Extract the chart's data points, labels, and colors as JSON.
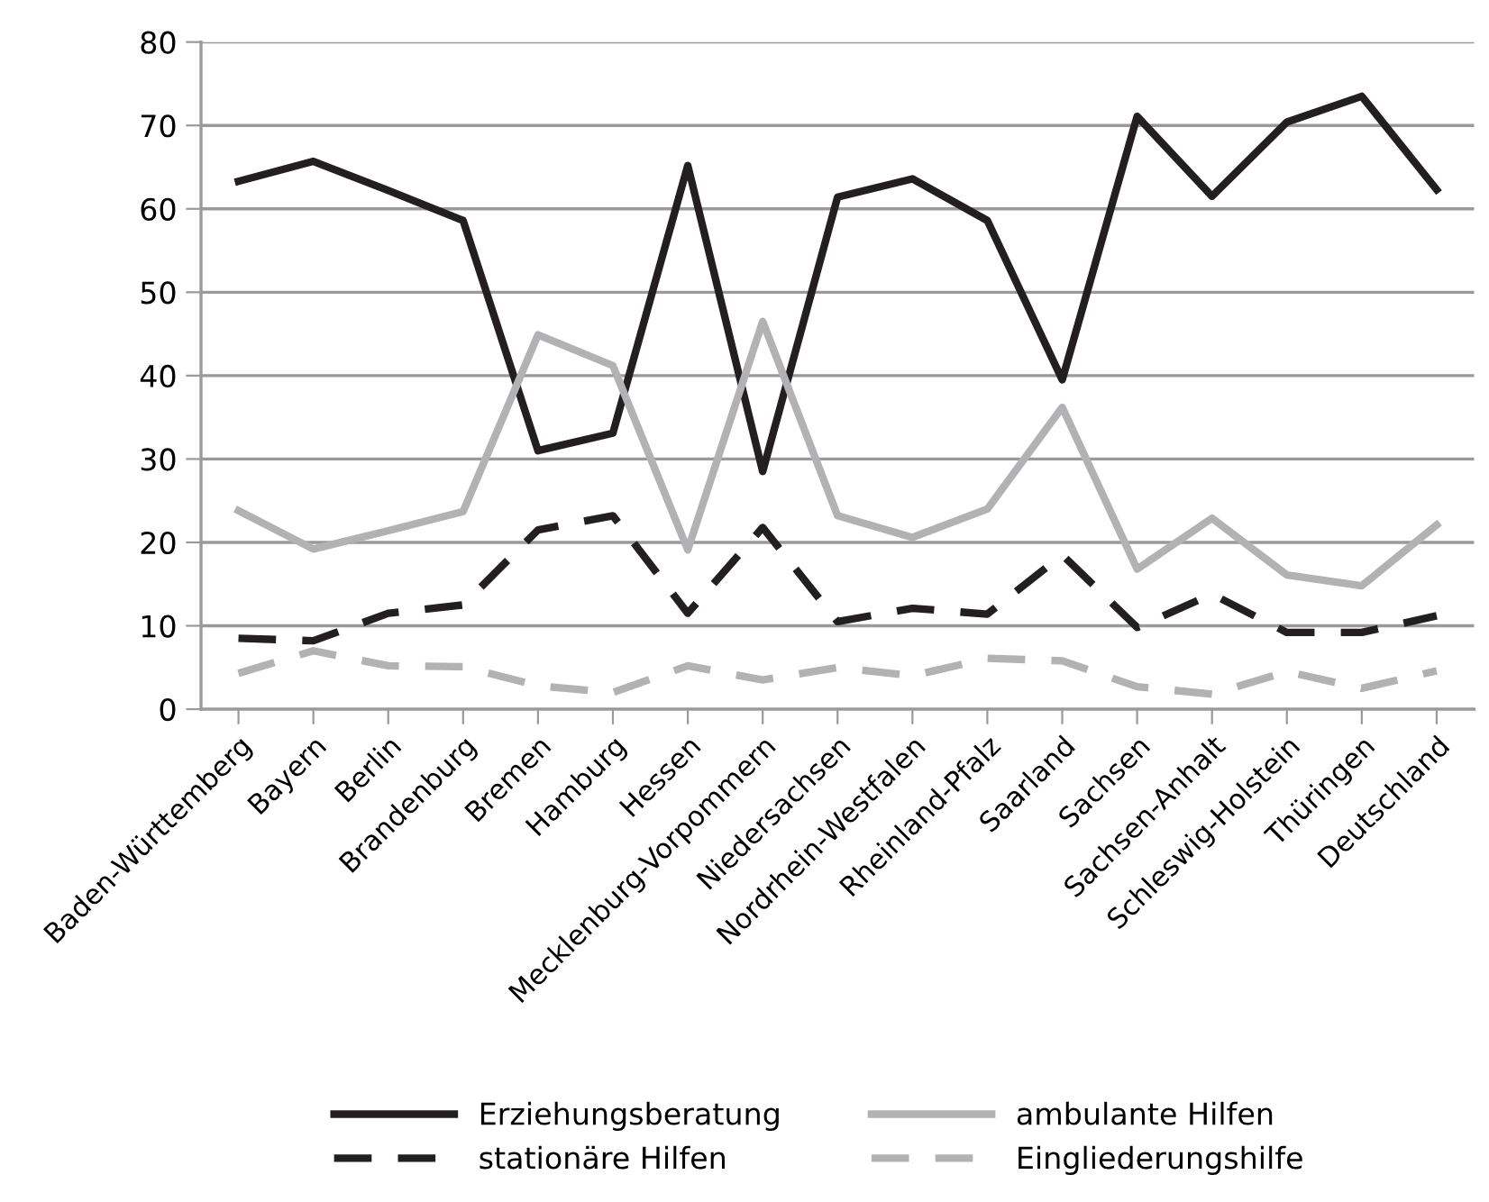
{
  "chart_data": {
    "type": "line",
    "categories": [
      "Baden-Württemberg",
      "Bayern",
      "Berlin",
      "Brandenburg",
      "Bremen",
      "Hamburg",
      "Hessen",
      "Mecklenburg-Vorpommern",
      "Niedersachsen",
      "Nordrhein-Westfalen",
      "Rheinland-Pfalz",
      "Saarland",
      "Sachsen",
      "Sachsen-Anhalt",
      "Schleswig-Holstein",
      "Thüringen",
      "Deutschland"
    ],
    "series": [
      {
        "name": "Erziehungsberatung",
        "color": "#231f20",
        "line_style": "solid",
        "values": [
          63.3,
          65.7,
          62.2,
          58.6,
          31.0,
          33.1,
          65.2,
          28.5,
          61.4,
          63.6,
          58.6,
          39.5,
          71.1,
          61.5,
          70.4,
          73.5,
          62.3
        ]
      },
      {
        "name": "stationäre Hilfen",
        "color": "#231f20",
        "line_style": "dashed",
        "values": [
          8.5,
          8.2,
          11.5,
          12.5,
          21.5,
          23.2,
          11.5,
          21.8,
          10.5,
          12.1,
          11.4,
          18.5,
          9.8,
          13.8,
          9.2,
          9.2,
          11.2
        ]
      },
      {
        "name": "ambulante Hilfen",
        "color": "#b2b2b4",
        "line_style": "solid",
        "values": [
          23.8,
          19.2,
          21.4,
          23.7,
          44.9,
          41.2,
          19.1,
          46.5,
          23.2,
          20.6,
          24.0,
          36.2,
          16.8,
          22.9,
          16.1,
          14.8,
          22.1
        ]
      },
      {
        "name": "Eingliederungshilfe",
        "color": "#b2b2b4",
        "line_style": "dashed",
        "values": [
          4.3,
          7.0,
          5.2,
          5.1,
          2.8,
          2.0,
          5.2,
          3.5,
          5.0,
          4.0,
          6.1,
          5.8,
          2.7,
          1.8,
          4.5,
          2.5,
          4.6
        ]
      }
    ],
    "ylim": [
      0,
      80
    ],
    "yticks": [
      0,
      10,
      20,
      30,
      40,
      50,
      60,
      70,
      80
    ],
    "grid": "y",
    "legend": "bottom",
    "marker": "none"
  }
}
